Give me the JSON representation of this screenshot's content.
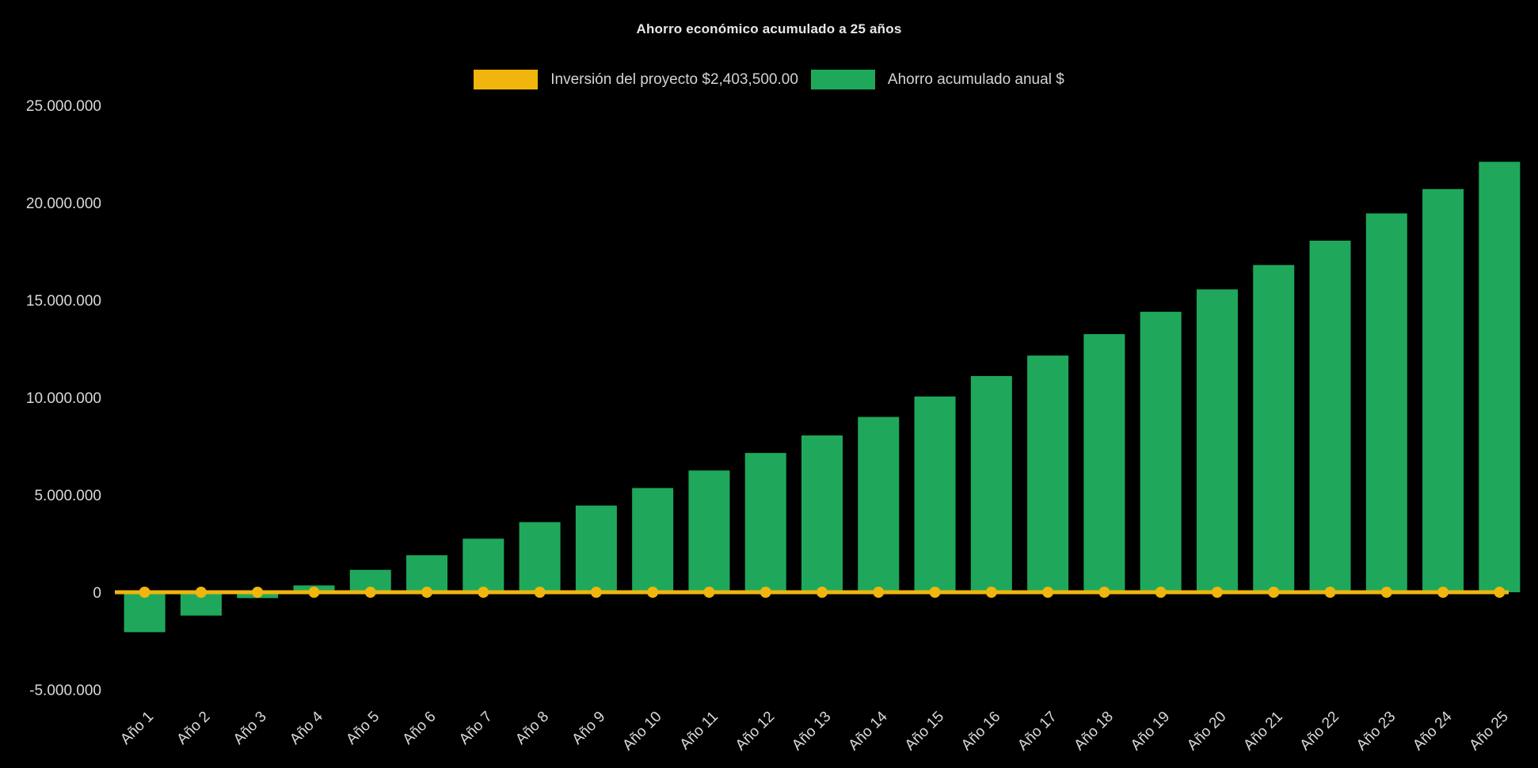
{
  "page": {
    "background": "#000000",
    "text_color": "#D9D9D9"
  },
  "chart_data": {
    "type": "bar",
    "title": "Ahorro económico acumulado a 25 años",
    "categories": [
      "Año 1",
      "Año 2",
      "Año 3",
      "Año 4",
      "Año 5",
      "Año 6",
      "Año 7",
      "Año 8",
      "Año 9",
      "Año 10",
      "Año 11",
      "Año 12",
      "Año 13",
      "Año 14",
      "Año 15",
      "Año 16",
      "Año 17",
      "Año 18",
      "Año 19",
      "Año 20",
      "Año 21",
      "Año 22",
      "Año 23",
      "Año 24",
      "Año 25"
    ],
    "series": [
      {
        "name": "Inversión del proyecto $2,403,500.00",
        "type": "line",
        "color": "#F0B60D",
        "marker": "circle",
        "values": [
          0,
          0,
          0,
          0,
          0,
          0,
          0,
          0,
          0,
          0,
          0,
          0,
          0,
          0,
          0,
          0,
          0,
          0,
          0,
          0,
          0,
          0,
          0,
          0,
          0
        ]
      },
      {
        "name": "Ahorro acumulado anual $",
        "type": "bar",
        "color": "#1FA85C",
        "values": [
          -2050000,
          -1200000,
          -300000,
          350000,
          1150000,
          1900000,
          2750000,
          3600000,
          4450000,
          5350000,
          6250000,
          7150000,
          8050000,
          9000000,
          10050000,
          11100000,
          12150000,
          13250000,
          14400000,
          15550000,
          16800000,
          18050000,
          19450000,
          20700000,
          22100000
        ]
      }
    ],
    "y_axis": {
      "min": -5000000,
      "max": 25000000,
      "ticks": [
        {
          "value": 25000000,
          "label": "25.000.000"
        },
        {
          "value": 20000000,
          "label": "20.000.000"
        },
        {
          "value": 15000000,
          "label": "15.000.000"
        },
        {
          "value": 10000000,
          "label": "10.000.000"
        },
        {
          "value": 5000000,
          "label": "5.000.000"
        },
        {
          "value": 0,
          "label": "0"
        },
        {
          "value": -5000000,
          "label": "-5.000.000"
        }
      ]
    },
    "x_axis": {
      "label_rotation": -45
    },
    "legend_position": "top",
    "grid": false,
    "background": "#000000"
  }
}
